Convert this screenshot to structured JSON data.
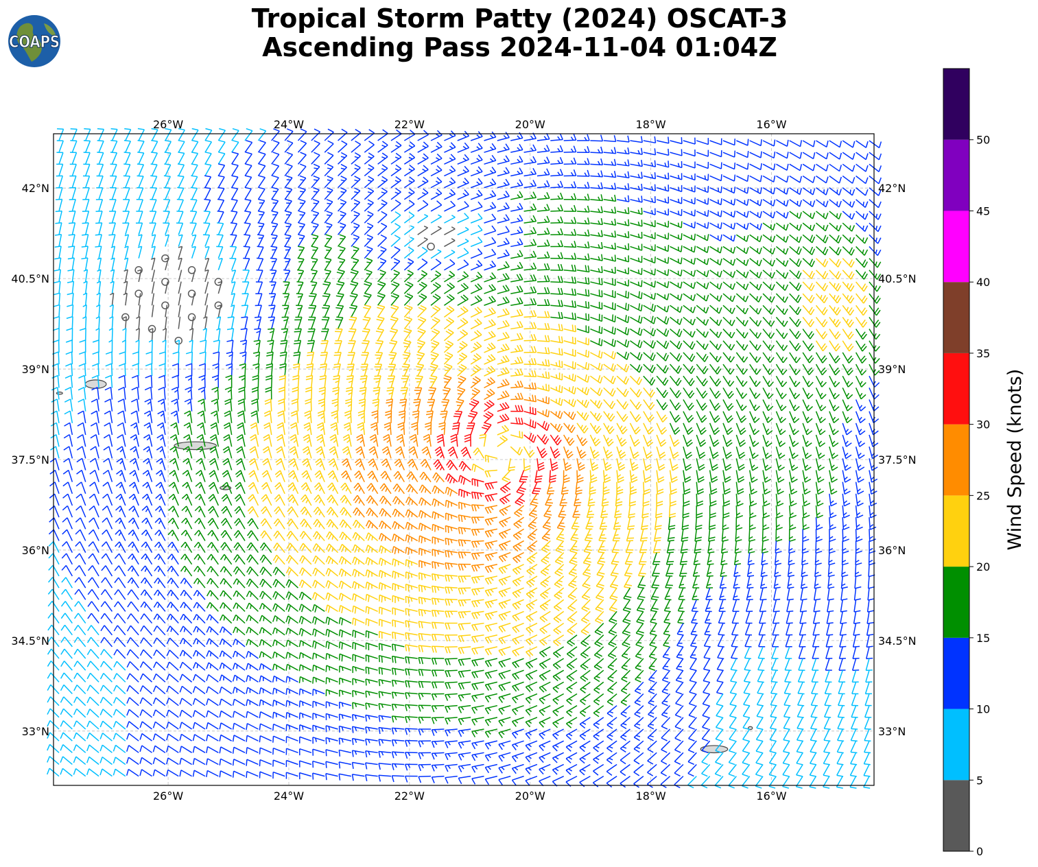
{
  "logo": {
    "text": "COAPS",
    "icon": "globe-logo"
  },
  "title": {
    "line1": "Tropical Storm Patty (2024) OSCAT-3",
    "line2": "Ascending Pass 2024-11-04 01:04Z"
  },
  "map": {
    "lon_range": [
      -27.9,
      -14.3
    ],
    "lat_range": [
      32.1,
      42.9
    ],
    "lon_ticks": [
      {
        "value": -26,
        "label": "26°W"
      },
      {
        "value": -24,
        "label": "24°W"
      },
      {
        "value": -22,
        "label": "22°W"
      },
      {
        "value": -20,
        "label": "20°W"
      },
      {
        "value": -18,
        "label": "18°W"
      },
      {
        "value": -16,
        "label": "16°W"
      }
    ],
    "lat_ticks": [
      {
        "value": 42,
        "label": "42°N"
      },
      {
        "value": 40.5,
        "label": "40.5°N"
      },
      {
        "value": 39,
        "label": "39°N"
      },
      {
        "value": 37.5,
        "label": "37.5°N"
      },
      {
        "value": 36,
        "label": "36°N"
      },
      {
        "value": 34.5,
        "label": "34.5°N"
      },
      {
        "value": 33,
        "label": "33°N"
      }
    ],
    "grid": true,
    "storm_center": {
      "lon": -20.5,
      "lat": 37.6
    },
    "low_wind_zones": [
      {
        "lon": -25.7,
        "lat": 40.0,
        "r_lon": 1.5,
        "r_lat": 1.3
      },
      {
        "lon": -21.6,
        "lat": 41.1,
        "r_lon": 1.3,
        "r_lat": 0.7
      }
    ],
    "islands": [
      {
        "name": "flores",
        "lon": -27.2,
        "lat": 38.75,
        "w": 0.35,
        "h": 0.14
      },
      {
        "name": "faial-pico",
        "lon": -25.55,
        "lat": 37.73,
        "w": 0.7,
        "h": 0.13
      },
      {
        "name": "sao-miguel-east",
        "lon": -25.05,
        "lat": 37.03,
        "w": 0.18,
        "h": 0.06
      },
      {
        "name": "madeira",
        "lon": -16.95,
        "lat": 32.7,
        "w": 0.45,
        "h": 0.12
      },
      {
        "name": "porto-santo",
        "lon": -16.35,
        "lat": 33.05,
        "w": 0.07,
        "h": 0.05
      },
      {
        "name": "corvo-west",
        "lon": -27.8,
        "lat": 38.6,
        "w": 0.1,
        "h": 0.04
      }
    ]
  },
  "colorbar": {
    "label": "Wind Speed (knots)",
    "ticks": [
      "0",
      "5",
      "10",
      "15",
      "20",
      "25",
      "30",
      "35",
      "40",
      "45",
      "50"
    ],
    "bins": [
      {
        "min": 0,
        "max": 5,
        "color": "#595959"
      },
      {
        "min": 5,
        "max": 10,
        "color": "#00bfff"
      },
      {
        "min": 10,
        "max": 15,
        "color": "#0033ff"
      },
      {
        "min": 15,
        "max": 20,
        "color": "#008f00"
      },
      {
        "min": 20,
        "max": 25,
        "color": "#ffd10f"
      },
      {
        "min": 25,
        "max": 30,
        "color": "#ff8c00"
      },
      {
        "min": 30,
        "max": 35,
        "color": "#ff0f0f"
      },
      {
        "min": 35,
        "max": 40,
        "color": "#7f3f2a"
      },
      {
        "min": 40,
        "max": 45,
        "color": "#ff00ff"
      },
      {
        "min": 45,
        "max": 50,
        "color": "#8000bf"
      },
      {
        "min": 50,
        "max": 55,
        "color": "#30005f"
      }
    ]
  }
}
